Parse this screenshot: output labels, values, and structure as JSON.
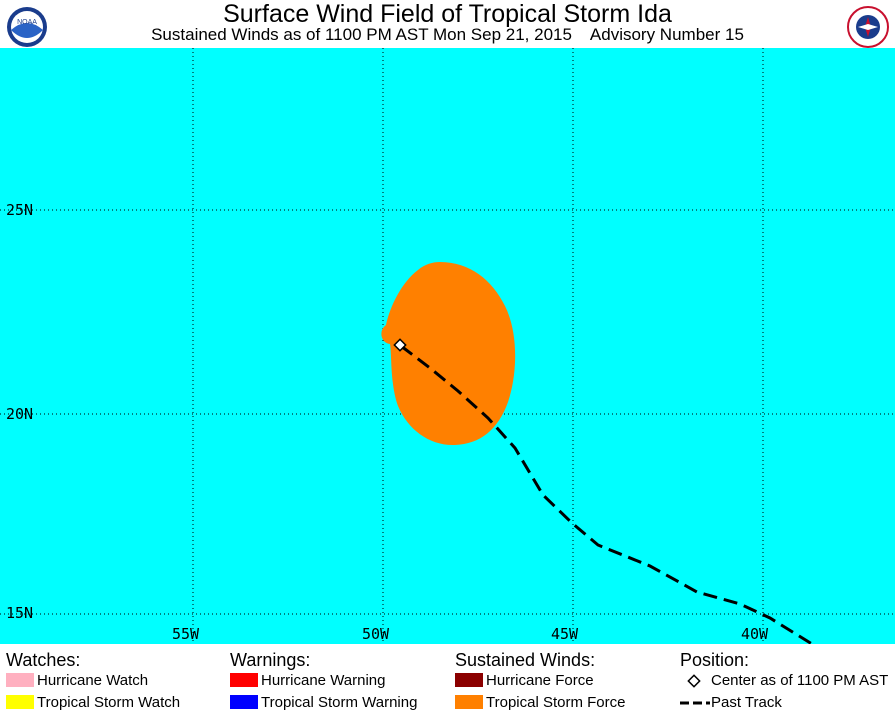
{
  "header": {
    "title": "Surface Wind Field of Tropical Storm Ida",
    "subtitle": "Sustained Winds as of 1100 PM AST Mon Sep 21, 2015    Advisory Number 15",
    "left_logo": "NOAA",
    "right_logo": "NATIONAL WEATHER SERVICE"
  },
  "map": {
    "ocean_color": "#00ffff",
    "lat_labels": [
      "25N",
      "20N",
      "15N"
    ],
    "lon_labels": [
      "55W",
      "50W",
      "45W",
      "40W"
    ],
    "wind_field_color": "#ff8000",
    "track_color": "#000000"
  },
  "legend": {
    "watches": {
      "heading": "Watches:",
      "items": [
        {
          "label": "Hurricane Watch",
          "color": "#ffb0c0"
        },
        {
          "label": "Tropical Storm Watch",
          "color": "#ffff00"
        }
      ]
    },
    "warnings": {
      "heading": "Warnings:",
      "items": [
        {
          "label": "Hurricane Warning",
          "color": "#ff0000"
        },
        {
          "label": "Tropical Storm Warning",
          "color": "#0000ff"
        }
      ]
    },
    "winds": {
      "heading": "Sustained Winds:",
      "items": [
        {
          "label": "Hurricane Force",
          "color": "#8b0000"
        },
        {
          "label": "Tropical Storm Force",
          "color": "#ff8000"
        }
      ]
    },
    "position": {
      "heading": "Position:",
      "center_label": "Center as of 1100 PM AST",
      "track_label": "Past Track"
    }
  }
}
